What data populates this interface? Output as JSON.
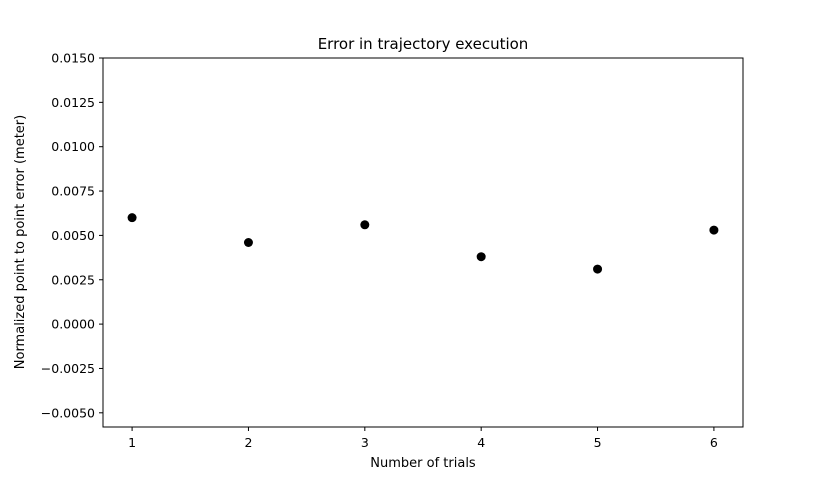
{
  "chart_data": {
    "type": "scatter",
    "title": "Error in trajectory execution",
    "xlabel": "Number of trials",
    "ylabel": "Normalized point to point error (meter)",
    "x": [
      1,
      2,
      3,
      4,
      5,
      6
    ],
    "y": [
      0.006,
      0.0046,
      0.0056,
      0.0038,
      0.0031,
      0.0053
    ],
    "xlim": [
      0.75,
      6.25
    ],
    "ylim": [
      -0.0058,
      0.015
    ],
    "xticks": [
      1,
      2,
      3,
      4,
      5,
      6
    ],
    "xtick_labels": [
      "1",
      "2",
      "3",
      "4",
      "5",
      "6"
    ],
    "yticks": [
      -0.005,
      -0.0025,
      0.0,
      0.0025,
      0.005,
      0.0075,
      0.01,
      0.0125,
      0.015
    ],
    "ytick_labels": [
      "−0.0050",
      "−0.0025",
      "0.0000",
      "0.0025",
      "0.0050",
      "0.0075",
      "0.0100",
      "0.0125",
      "0.0150"
    ],
    "grid": false,
    "marker_color": "#000000"
  }
}
